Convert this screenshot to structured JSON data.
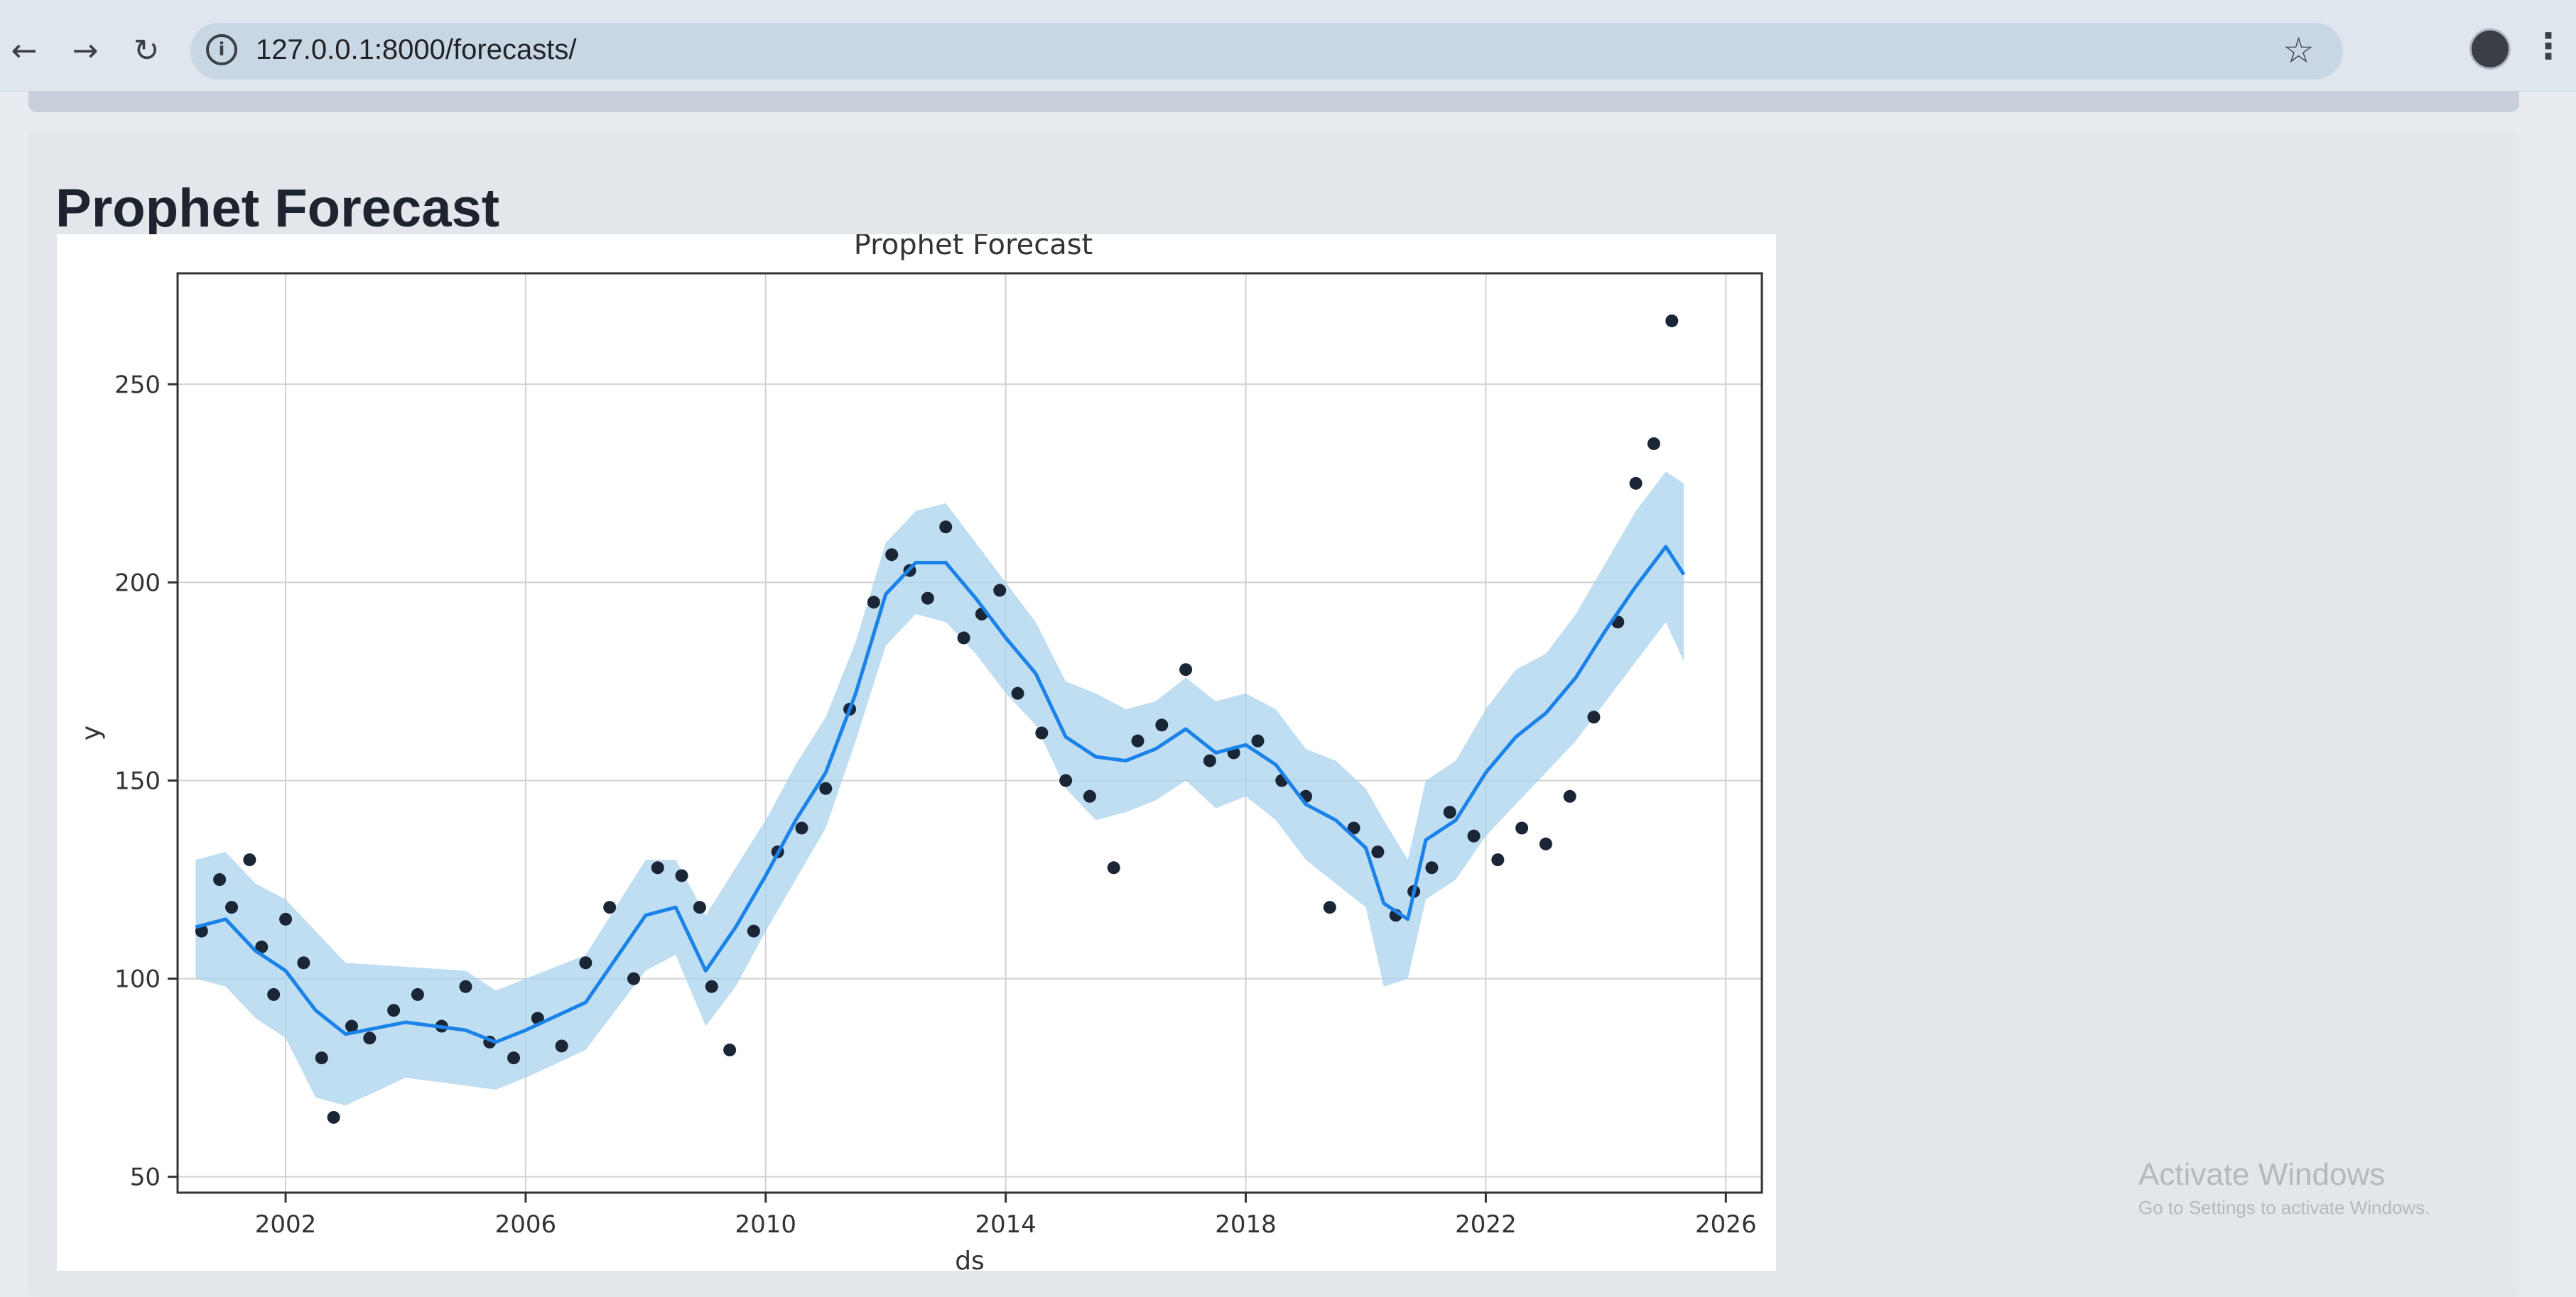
{
  "browser": {
    "back_glyph": "←",
    "forward_glyph": "→",
    "reload_glyph": "↻",
    "info_glyph": "i",
    "url": "127.0.0.1:8000/forecasts/",
    "star_glyph": "☆",
    "menu_glyph": "⋮"
  },
  "page": {
    "title": "Prophet Forecast"
  },
  "watermark": {
    "title": "Activate Windows",
    "subtitle": "Go to Settings to activate Windows."
  },
  "colors": {
    "actual_points": "#1a2535",
    "forecast_line": "#1a82e8",
    "uncertainty_band": "#a9d3ec",
    "grid": "#d2d2d2"
  },
  "chart_data": {
    "type": "line",
    "title": "Prophet Forecast",
    "xlabel": "ds",
    "ylabel": "y",
    "xlim": [
      2000.2,
      2026.6
    ],
    "ylim": [
      46,
      278
    ],
    "x_ticks": [
      2002,
      2006,
      2010,
      2014,
      2018,
      2022,
      2026
    ],
    "y_ticks": [
      50,
      100,
      150,
      200,
      250
    ],
    "grid": true,
    "series": [
      {
        "kind": "uncertainty_band",
        "x": [
          2000.5,
          2001,
          2001.5,
          2002,
          2002.5,
          2003,
          2004,
          2005,
          2005.5,
          2006,
          2007,
          2008,
          2008.5,
          2009,
          2009.5,
          2010,
          2010.5,
          2011,
          2011.5,
          2012,
          2012.5,
          2013,
          2013.5,
          2014,
          2014.5,
          2015,
          2015.5,
          2016,
          2016.5,
          2017,
          2017.5,
          2018,
          2018.5,
          2019,
          2019.5,
          2020,
          2020.3,
          2020.7,
          2021,
          2021.5,
          2022,
          2022.5,
          2023,
          2023.5,
          2024,
          2024.5,
          2025,
          2025.3
        ],
        "y_upper": [
          130,
          132,
          124,
          120,
          112,
          104,
          103,
          102,
          97,
          100,
          106,
          130,
          130,
          116,
          128,
          140,
          154,
          166,
          185,
          210,
          218,
          220,
          210,
          200,
          190,
          175,
          172,
          168,
          170,
          176,
          170,
          172,
          168,
          158,
          155,
          148,
          140,
          130,
          150,
          155,
          168,
          178,
          182,
          192,
          205,
          218,
          228,
          225
        ],
        "y_lower": [
          100,
          98,
          90,
          85,
          70,
          68,
          75,
          73,
          72,
          75,
          82,
          102,
          106,
          88,
          98,
          112,
          125,
          138,
          160,
          184,
          192,
          190,
          182,
          172,
          164,
          148,
          140,
          142,
          145,
          150,
          143,
          146,
          140,
          130,
          124,
          118,
          98,
          100,
          120,
          125,
          136,
          144,
          152,
          160,
          170,
          180,
          190,
          180
        ]
      },
      {
        "kind": "forecast_line",
        "x": [
          2000.5,
          2001,
          2001.5,
          2002,
          2002.5,
          2003,
          2004,
          2005,
          2005.5,
          2006,
          2007,
          2008,
          2008.5,
          2009,
          2009.5,
          2010,
          2010.5,
          2011,
          2011.5,
          2012,
          2012.5,
          2013,
          2013.5,
          2014,
          2014.5,
          2015,
          2015.5,
          2016,
          2016.5,
          2017,
          2017.5,
          2018,
          2018.5,
          2019,
          2019.5,
          2020,
          2020.3,
          2020.7,
          2021,
          2021.5,
          2022,
          2022.5,
          2023,
          2023.5,
          2024,
          2024.5,
          2025,
          2025.3
        ],
        "y": [
          113,
          115,
          107,
          102,
          92,
          86,
          89,
          87,
          84,
          87,
          94,
          116,
          118,
          102,
          113,
          126,
          140,
          152,
          172,
          197,
          205,
          205,
          196,
          186,
          177,
          161,
          156,
          155,
          158,
          163,
          157,
          159,
          154,
          144,
          140,
          133,
          119,
          115,
          135,
          140,
          152,
          161,
          167,
          176,
          188,
          199,
          209,
          202
        ]
      },
      {
        "kind": "actual_points",
        "x": [
          2000.6,
          2000.9,
          2001.1,
          2001.4,
          2001.6,
          2001.8,
          2002,
          2002.3,
          2002.6,
          2002.8,
          2003.1,
          2003.4,
          2003.8,
          2004.2,
          2004.6,
          2005,
          2005.4,
          2005.8,
          2006.2,
          2006.6,
          2007,
          2007.4,
          2007.8,
          2008.2,
          2008.6,
          2008.9,
          2009.1,
          2009.4,
          2009.8,
          2010.2,
          2010.6,
          2011,
          2011.4,
          2011.8,
          2012.1,
          2012.4,
          2012.7,
          2013,
          2013.3,
          2013.6,
          2013.9,
          2014.2,
          2014.6,
          2015,
          2015.4,
          2015.8,
          2016.2,
          2016.6,
          2017,
          2017.4,
          2017.8,
          2018.2,
          2018.6,
          2019,
          2019.4,
          2019.8,
          2020.2,
          2020.5,
          2020.8,
          2021.1,
          2021.4,
          2021.8,
          2022.2,
          2022.6,
          2023,
          2023.4,
          2023.8,
          2024.2,
          2024.5,
          2024.8,
          2025.1
        ],
        "y": [
          112,
          125,
          118,
          130,
          108,
          96,
          115,
          104,
          80,
          65,
          88,
          85,
          92,
          96,
          88,
          98,
          84,
          80,
          90,
          83,
          104,
          118,
          100,
          128,
          126,
          118,
          98,
          82,
          112,
          132,
          138,
          148,
          168,
          195,
          207,
          203,
          196,
          214,
          186,
          192,
          198,
          172,
          162,
          150,
          146,
          128,
          160,
          164,
          178,
          155,
          157,
          160,
          150,
          146,
          118,
          138,
          132,
          116,
          122,
          128,
          142,
          136,
          130,
          138,
          134,
          146,
          166,
          190,
          225,
          235,
          266
        ]
      }
    ]
  }
}
